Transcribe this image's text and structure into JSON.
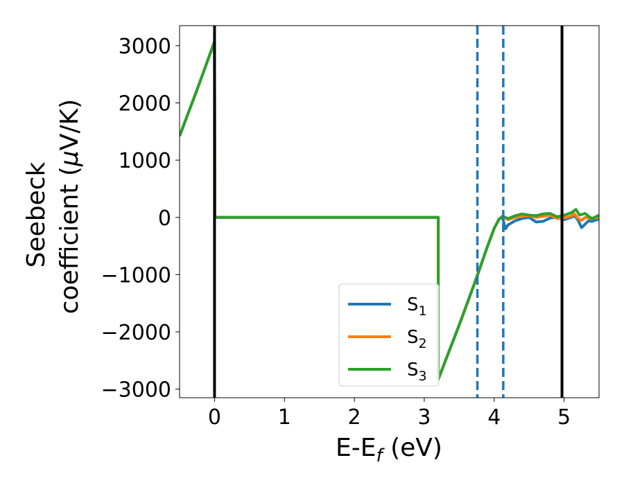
{
  "chart_data": {
    "type": "line",
    "title": "",
    "xlabel": "E-E",
    "xlabel_sub": "f",
    "xlabel_unit": " (eV)",
    "ylabel_line1": "Seebeck",
    "ylabel_line2": "coefficient  (",
    "ylabel_mu": "μ",
    "ylabel_unit": "V/K)",
    "xlim": [
      -0.5,
      5.5
    ],
    "ylim": [
      -3150,
      3350
    ],
    "xticks": [
      0,
      1,
      2,
      3,
      4,
      5
    ],
    "xtick_labels": [
      "0",
      "1",
      "2",
      "3",
      "4",
      "5"
    ],
    "yticks": [
      3000,
      2000,
      1000,
      0,
      -1000,
      -2000,
      -3000
    ],
    "ytick_labels": [
      "3000",
      "2000",
      "1000",
      "0",
      "−1000",
      "−2000",
      "−3000"
    ],
    "grid": false,
    "legend_position": "lower-center",
    "legend": [
      {
        "name": "S",
        "sub": "1",
        "color": "#1f77b4"
      },
      {
        "name": "S",
        "sub": "2",
        "color": "#ff7f0e"
      },
      {
        "name": "S",
        "sub": "3",
        "color": "#2ca02c"
      }
    ],
    "series": [
      {
        "name": "S1",
        "color": "#1f77b4",
        "points": [
          [
            -0.5,
            1420
          ],
          [
            -0.25,
            2230
          ],
          [
            0,
            3070
          ],
          [
            0.005,
            0
          ],
          [
            3.2,
            0
          ],
          [
            3.2,
            -2830
          ],
          [
            3.5,
            -1880
          ],
          [
            3.75,
            -1050
          ],
          [
            3.9,
            -520
          ],
          [
            4.0,
            -190
          ],
          [
            4.07,
            -30
          ],
          [
            4.12,
            0
          ],
          [
            4.16,
            -200
          ],
          [
            4.2,
            -130
          ],
          [
            4.3,
            -60
          ],
          [
            4.4,
            -20
          ],
          [
            4.5,
            0
          ],
          [
            4.6,
            -80
          ],
          [
            4.7,
            -70
          ],
          [
            4.8,
            -10
          ],
          [
            4.9,
            0
          ],
          [
            5.0,
            -40
          ],
          [
            5.1,
            0
          ],
          [
            5.15,
            30
          ],
          [
            5.2,
            -50
          ],
          [
            5.25,
            -180
          ],
          [
            5.3,
            -120
          ],
          [
            5.35,
            -60
          ],
          [
            5.4,
            -70
          ],
          [
            5.5,
            -30
          ]
        ]
      },
      {
        "name": "S2",
        "color": "#ff7f0e",
        "points": [
          [
            -0.5,
            1420
          ],
          [
            -0.25,
            2230
          ],
          [
            0,
            3070
          ],
          [
            0.005,
            0
          ],
          [
            3.2,
            0
          ],
          [
            3.2,
            -2830
          ],
          [
            3.5,
            -1880
          ],
          [
            3.75,
            -1050
          ],
          [
            3.9,
            -520
          ],
          [
            4.0,
            -190
          ],
          [
            4.07,
            -30
          ],
          [
            4.12,
            10
          ],
          [
            4.2,
            -40
          ],
          [
            4.3,
            0
          ],
          [
            4.4,
            20
          ],
          [
            4.5,
            30
          ],
          [
            4.6,
            0
          ],
          [
            4.7,
            20
          ],
          [
            4.8,
            40
          ],
          [
            4.9,
            -20
          ],
          [
            5.0,
            -10
          ],
          [
            5.1,
            20
          ],
          [
            5.15,
            60
          ],
          [
            5.2,
            -20
          ],
          [
            5.25,
            -50
          ],
          [
            5.3,
            0
          ],
          [
            5.4,
            -20
          ],
          [
            5.5,
            0
          ]
        ]
      },
      {
        "name": "S3",
        "color": "#2ca02c",
        "points": [
          [
            -0.5,
            1420
          ],
          [
            -0.25,
            2230
          ],
          [
            0,
            3070
          ],
          [
            0.005,
            0
          ],
          [
            3.2,
            0
          ],
          [
            3.2,
            -2830
          ],
          [
            3.5,
            -1880
          ],
          [
            3.75,
            -1050
          ],
          [
            3.9,
            -520
          ],
          [
            4.0,
            -190
          ],
          [
            4.07,
            -30
          ],
          [
            4.12,
            20
          ],
          [
            4.2,
            -20
          ],
          [
            4.3,
            30
          ],
          [
            4.4,
            60
          ],
          [
            4.5,
            40
          ],
          [
            4.6,
            30
          ],
          [
            4.7,
            60
          ],
          [
            4.8,
            70
          ],
          [
            4.9,
            10
          ],
          [
            5.0,
            40
          ],
          [
            5.1,
            80
          ],
          [
            5.17,
            140
          ],
          [
            5.22,
            40
          ],
          [
            5.3,
            70
          ],
          [
            5.35,
            20
          ],
          [
            5.4,
            -20
          ],
          [
            5.5,
            40
          ]
        ]
      }
    ],
    "vlines": [
      {
        "x": 0,
        "style": "solid",
        "color": "#000000"
      },
      {
        "x": 4.97,
        "style": "solid",
        "color": "#000000"
      },
      {
        "x": 3.76,
        "style": "dashed",
        "color": "#1f77b4"
      },
      {
        "x": 4.13,
        "style": "dashed",
        "color": "#1f77b4"
      }
    ]
  }
}
